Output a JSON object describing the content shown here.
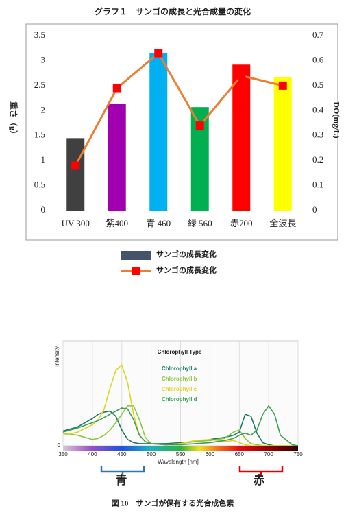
{
  "chart_data": [
    {
      "type": "bar",
      "title": "グラフ１　サンゴの成長と光合成量の変化",
      "y_label": "重さ（g）",
      "y2_label": "DO(mg/L)",
      "categories": [
        "UV 300",
        "紫400",
        "青 460",
        "緑 560",
        "赤700",
        "全波長"
      ],
      "series": [
        {
          "name": "サンゴの成長変化",
          "type": "bar",
          "color": "#44546a",
          "colors": [
            "#404040",
            "#a000b0",
            "#00b0f0",
            "#00b050",
            "#ff0000",
            "#ffff00"
          ],
          "values": [
            1.45,
            2.13,
            3.15,
            2.07,
            2.92,
            2.67
          ]
        },
        {
          "name": "サンゴの成長変化",
          "type": "line",
          "axis": "y2",
          "color": "#ed7d31",
          "marker_color": "#ff0000",
          "values": [
            0.18,
            0.49,
            0.63,
            0.34,
            0.54,
            0.5
          ]
        }
      ],
      "ylim": [
        0,
        3.5
      ],
      "yticks": [
        0,
        0.5,
        1,
        1.5,
        2,
        2.5,
        3,
        3.5
      ],
      "y2lim": [
        0,
        0.7
      ],
      "y2ticks": [
        0,
        0.1,
        0.2,
        0.3,
        0.4,
        0.5,
        0.6,
        0.7
      ],
      "grid": false
    },
    {
      "type": "line",
      "title": "Chlorophyll Type",
      "x_label": "Wavelength [nm]",
      "y_label": "Intensity",
      "x": [
        350,
        375,
        400,
        410,
        420,
        430,
        440,
        450,
        460,
        470,
        480,
        490,
        500,
        525,
        550,
        575,
        600,
        625,
        640,
        650,
        660,
        670,
        680,
        690,
        700,
        710,
        720,
        740,
        750
      ],
      "series": [
        {
          "name": "Chlorophyll a",
          "color": "#1a7a66",
          "values": [
            0.14,
            0.18,
            0.26,
            0.3,
            0.32,
            0.33,
            0.28,
            0.15,
            0.06,
            0.03,
            0.02,
            0.02,
            0.02,
            0.02,
            0.03,
            0.04,
            0.06,
            0.08,
            0.1,
            0.13,
            0.3,
            0.28,
            0.12,
            0.03,
            0.01,
            0,
            0,
            0,
            0
          ]
        },
        {
          "name": "Chlorophyll b",
          "color": "#8cc63f",
          "values": [
            0.12,
            0.1,
            0.06,
            0.07,
            0.1,
            0.15,
            0.22,
            0.3,
            0.38,
            0.38,
            0.25,
            0.08,
            0.02,
            0.01,
            0.02,
            0.04,
            0.05,
            0.07,
            0.13,
            0.15,
            0.07,
            0.02,
            0.01,
            0,
            0,
            0,
            0,
            0,
            0
          ]
        },
        {
          "name": "Chlorophyll c",
          "color": "#e2d21e",
          "values": [
            0.1,
            0.13,
            0.2,
            0.25,
            0.35,
            0.55,
            0.72,
            0.77,
            0.6,
            0.3,
            0.1,
            0.04,
            0.02,
            0.01,
            0.02,
            0.05,
            0.06,
            0.04,
            0.05,
            0.03,
            0.01,
            0,
            0,
            0,
            0,
            0,
            0,
            0,
            0
          ]
        },
        {
          "name": "Chlorophyll d",
          "color": "#3aa050",
          "values": [
            0.13,
            0.17,
            0.22,
            0.24,
            0.27,
            0.3,
            0.33,
            0.36,
            0.35,
            0.25,
            0.1,
            0.04,
            0.02,
            0.01,
            0.01,
            0.02,
            0.03,
            0.05,
            0.07,
            0.1,
            0.12,
            0.1,
            0.15,
            0.3,
            0.38,
            0.3,
            0.1,
            0.01,
            0
          ]
        }
      ],
      "xlim": [
        350,
        750
      ],
      "xticks": [
        350,
        400,
        450,
        500,
        550,
        600,
        650,
        700,
        750
      ],
      "ylim": [
        0,
        1
      ],
      "yticks": [
        0
      ],
      "grid": true,
      "annotations": [
        "青",
        "赤"
      ],
      "caption": "図 10　サンゴが保有する光合成色素"
    }
  ]
}
